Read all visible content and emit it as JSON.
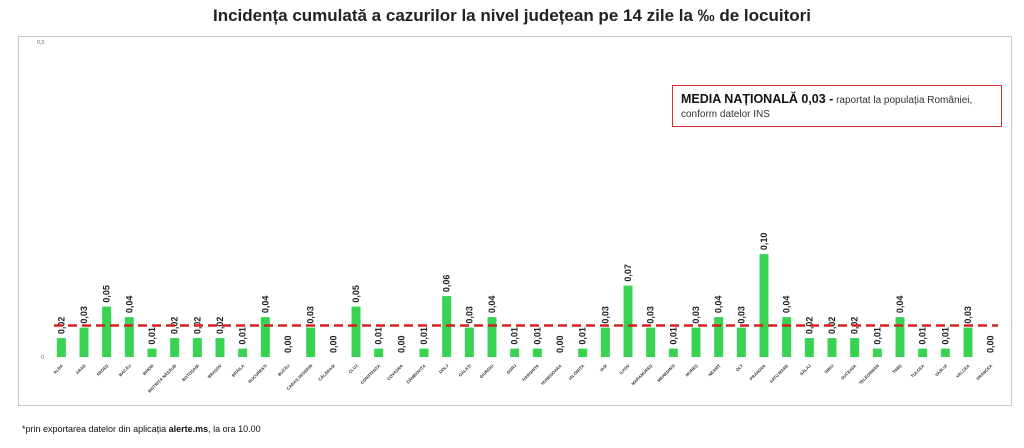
{
  "chart_data": {
    "type": "bar",
    "title": "Incidența cumulată a cazurilor la nivel județean pe 14 zile la ‰ de locuitori",
    "xlabel": "",
    "ylabel": "",
    "ylim": [
      0,
      0.3
    ],
    "yticks": [
      "0",
      "0,3"
    ],
    "grid": false,
    "bar_color": "#39d353",
    "reference_line": {
      "value": 0.03,
      "color": "#d42020",
      "style": "dashed"
    },
    "categories": [
      "ALBA",
      "ARAD",
      "ARGEȘ",
      "BACĂU",
      "BIHOR",
      "BISTRIȚA NĂSĂUD",
      "BOTOȘANI",
      "BRAȘOV",
      "BRĂILA",
      "BUCUREȘTI",
      "BUZĂU",
      "CARAȘ SEVERIN",
      "CĂLĂRAȘI",
      "CLUJ",
      "CONSTANȚA",
      "COVASNA",
      "DÂMBOVIȚA",
      "DOLJ",
      "GALAȚI",
      "GIURGIU",
      "GORJ",
      "HARGHITA",
      "HUNEDOARA",
      "IALOMIȚA",
      "IAȘI",
      "ILFOV",
      "MARAMUREȘ",
      "MEHEDINȚI",
      "MUREȘ",
      "NEAMȚ",
      "OLT",
      "PRAHOVA",
      "SATU MARE",
      "SĂLAJ",
      "SIBIU",
      "SUCEAVA",
      "TELEORMAN",
      "TIMIȘ",
      "TULCEA",
      "VASLUI",
      "VÂLCEA",
      "VRANCEA"
    ],
    "values": [
      0.018,
      0.028,
      0.048,
      0.038,
      0.008,
      0.018,
      0.018,
      0.018,
      0.008,
      0.038,
      0.0,
      0.028,
      0.0,
      0.048,
      0.008,
      0.0,
      0.008,
      0.058,
      0.028,
      0.038,
      0.008,
      0.008,
      0.0,
      0.008,
      0.028,
      0.068,
      0.028,
      0.008,
      0.028,
      0.038,
      0.028,
      0.098,
      0.038,
      0.018,
      0.018,
      0.018,
      0.008,
      0.038,
      0.008,
      0.008,
      0.028,
      0.0
    ],
    "value_labels": [
      "0,02",
      "0,03",
      "0,05",
      "0,04",
      "0,01",
      "0,02",
      "0,02",
      "0,02",
      "0,01",
      "0,04",
      "0,00",
      "0,03",
      "0,00",
      "0,05",
      "0,01",
      "0,00",
      "0,01",
      "0,06",
      "0,03",
      "0,04",
      "0,01",
      "0,01",
      "0,00",
      "0,01",
      "0,03",
      "0,07",
      "0,03",
      "0,01",
      "0,03",
      "0,04",
      "0,03",
      "0,10",
      "0,04",
      "0,02",
      "0,02",
      "0,02",
      "0,01",
      "0,04",
      "0,01",
      "0,01",
      "0,03",
      "0,00"
    ]
  },
  "annotation": {
    "strong": "MEDIA NAȚIONALĂ  0,03 -",
    "rest": " raportat la populația României, conform datelor INS"
  },
  "footnote": {
    "prefix": "*prin exportarea datelor din aplicația ",
    "app": "alerte.ms",
    "suffix": ", la ora 10.00"
  }
}
